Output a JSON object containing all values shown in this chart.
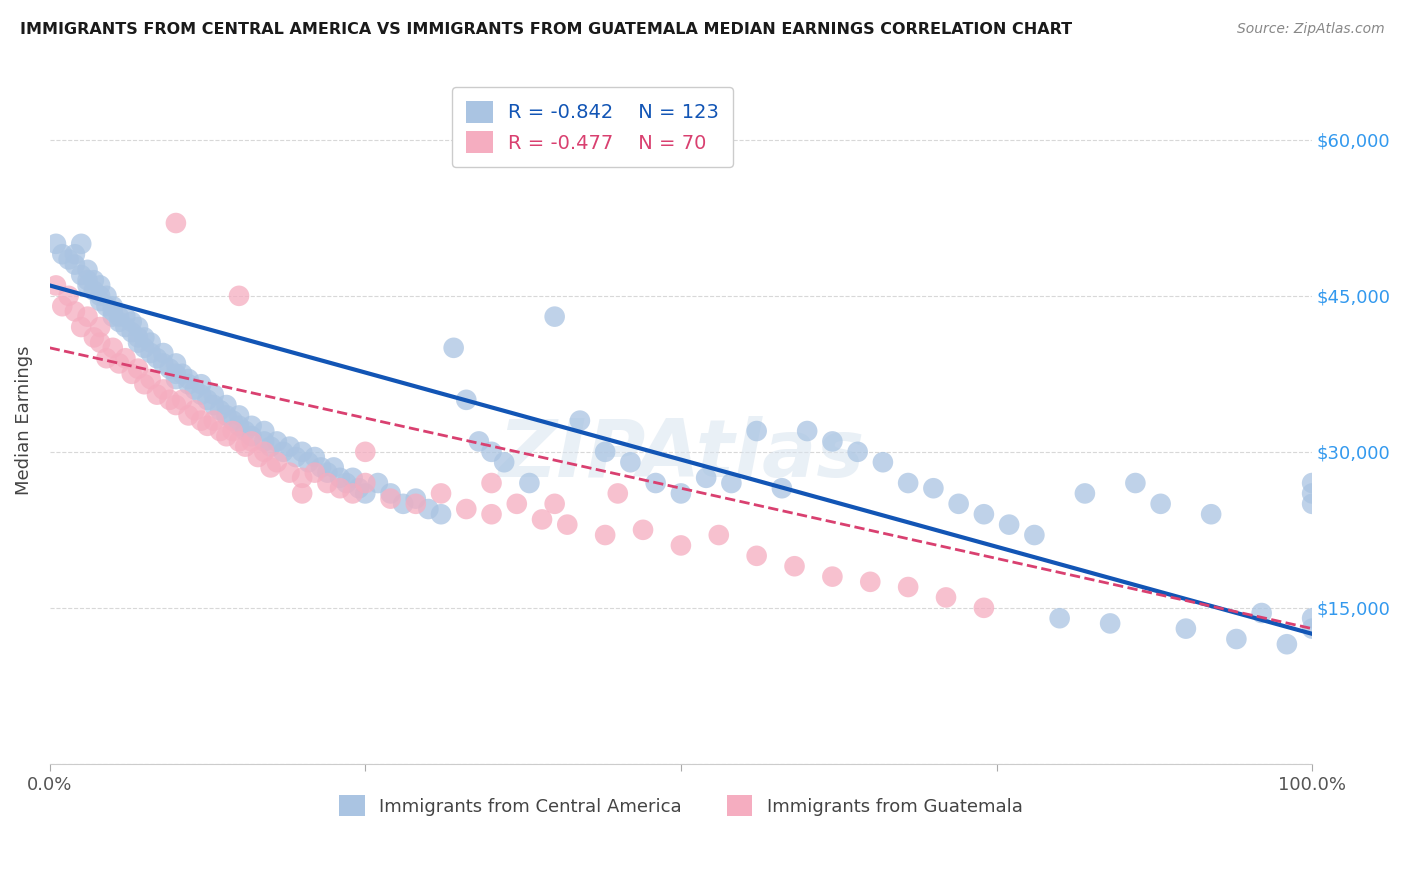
{
  "title": "IMMIGRANTS FROM CENTRAL AMERICA VS IMMIGRANTS FROM GUATEMALA MEDIAN EARNINGS CORRELATION CHART",
  "source": "Source: ZipAtlas.com",
  "ylabel": "Median Earnings",
  "yticks": [
    0,
    15000,
    30000,
    45000,
    60000
  ],
  "ylim": [
    0,
    66000
  ],
  "xlim": [
    0.0,
    1.0
  ],
  "blue_R": "-0.842",
  "blue_N": "123",
  "pink_R": "-0.477",
  "pink_N": "70",
  "blue_color": "#aac4e2",
  "pink_color": "#f5adc0",
  "blue_line_color": "#1255b5",
  "pink_line_color": "#d94070",
  "legend_label_blue": "Immigrants from Central America",
  "legend_label_pink": "Immigrants from Guatemala",
  "watermark": "ZIPAtlas",
  "background_color": "#ffffff",
  "grid_color": "#d8d8d8",
  "blue_line_intercept": 46000,
  "blue_line_slope": -33500,
  "pink_line_intercept": 40000,
  "pink_line_slope": -27000,
  "blue_scatter_x": [
    0.005,
    0.01,
    0.015,
    0.02,
    0.02,
    0.025,
    0.025,
    0.03,
    0.03,
    0.03,
    0.035,
    0.035,
    0.04,
    0.04,
    0.04,
    0.045,
    0.045,
    0.05,
    0.05,
    0.05,
    0.055,
    0.055,
    0.06,
    0.06,
    0.065,
    0.065,
    0.07,
    0.07,
    0.07,
    0.075,
    0.075,
    0.08,
    0.08,
    0.085,
    0.09,
    0.09,
    0.095,
    0.1,
    0.1,
    0.1,
    0.105,
    0.11,
    0.11,
    0.115,
    0.12,
    0.12,
    0.125,
    0.13,
    0.13,
    0.135,
    0.14,
    0.14,
    0.145,
    0.15,
    0.15,
    0.155,
    0.16,
    0.16,
    0.17,
    0.17,
    0.175,
    0.18,
    0.185,
    0.19,
    0.195,
    0.2,
    0.205,
    0.21,
    0.215,
    0.22,
    0.225,
    0.23,
    0.235,
    0.24,
    0.245,
    0.25,
    0.26,
    0.27,
    0.28,
    0.29,
    0.3,
    0.31,
    0.32,
    0.33,
    0.34,
    0.35,
    0.36,
    0.38,
    0.4,
    0.42,
    0.44,
    0.46,
    0.48,
    0.5,
    0.52,
    0.54,
    0.56,
    0.58,
    0.6,
    0.62,
    0.64,
    0.66,
    0.68,
    0.7,
    0.72,
    0.74,
    0.76,
    0.78,
    0.8,
    0.82,
    0.84,
    0.86,
    0.88,
    0.9,
    0.92,
    0.94,
    0.96,
    0.98,
    1.0,
    1.0,
    1.0,
    1.0,
    1.0
  ],
  "blue_scatter_y": [
    50000,
    49000,
    48500,
    49000,
    48000,
    50000,
    47000,
    47500,
    46500,
    46000,
    45500,
    46500,
    46000,
    45000,
    44500,
    44000,
    45000,
    43500,
    44000,
    43000,
    43000,
    42500,
    43000,
    42000,
    42500,
    41500,
    42000,
    41000,
    40500,
    41000,
    40000,
    40500,
    39500,
    39000,
    39500,
    38500,
    38000,
    38500,
    37500,
    37000,
    37500,
    37000,
    36500,
    36000,
    36500,
    35500,
    35000,
    35500,
    34500,
    34000,
    34500,
    33500,
    33000,
    33500,
    32500,
    32000,
    32500,
    31500,
    31000,
    32000,
    30500,
    31000,
    30000,
    30500,
    29500,
    30000,
    29000,
    29500,
    28500,
    28000,
    28500,
    27500,
    27000,
    27500,
    26500,
    26000,
    27000,
    26000,
    25000,
    25500,
    24500,
    24000,
    40000,
    35000,
    31000,
    30000,
    29000,
    27000,
    43000,
    33000,
    30000,
    29000,
    27000,
    26000,
    27500,
    27000,
    32000,
    26500,
    32000,
    31000,
    30000,
    29000,
    27000,
    26500,
    25000,
    24000,
    23000,
    22000,
    14000,
    26000,
    13500,
    27000,
    25000,
    13000,
    24000,
    12000,
    14500,
    11500,
    27000,
    26000,
    25000,
    14000,
    13000
  ],
  "pink_scatter_x": [
    0.005,
    0.01,
    0.015,
    0.02,
    0.025,
    0.03,
    0.035,
    0.04,
    0.04,
    0.045,
    0.05,
    0.055,
    0.06,
    0.065,
    0.07,
    0.075,
    0.08,
    0.085,
    0.09,
    0.095,
    0.1,
    0.105,
    0.11,
    0.115,
    0.12,
    0.125,
    0.13,
    0.135,
    0.14,
    0.145,
    0.15,
    0.155,
    0.16,
    0.165,
    0.17,
    0.175,
    0.18,
    0.19,
    0.2,
    0.21,
    0.22,
    0.23,
    0.24,
    0.25,
    0.27,
    0.29,
    0.31,
    0.33,
    0.35,
    0.37,
    0.39,
    0.41,
    0.44,
    0.47,
    0.5,
    0.53,
    0.56,
    0.59,
    0.62,
    0.65,
    0.68,
    0.71,
    0.74,
    0.1,
    0.15,
    0.2,
    0.25,
    0.35,
    0.4,
    0.45
  ],
  "pink_scatter_y": [
    46000,
    44000,
    45000,
    43500,
    42000,
    43000,
    41000,
    42000,
    40500,
    39000,
    40000,
    38500,
    39000,
    37500,
    38000,
    36500,
    37000,
    35500,
    36000,
    35000,
    34500,
    35000,
    33500,
    34000,
    33000,
    32500,
    33000,
    32000,
    31500,
    32000,
    31000,
    30500,
    31000,
    29500,
    30000,
    28500,
    29000,
    28000,
    27500,
    28000,
    27000,
    26500,
    26000,
    27000,
    25500,
    25000,
    26000,
    24500,
    24000,
    25000,
    23500,
    23000,
    22000,
    22500,
    21000,
    22000,
    20000,
    19000,
    18000,
    17500,
    17000,
    16000,
    15000,
    52000,
    45000,
    26000,
    30000,
    27000,
    25000,
    26000
  ]
}
